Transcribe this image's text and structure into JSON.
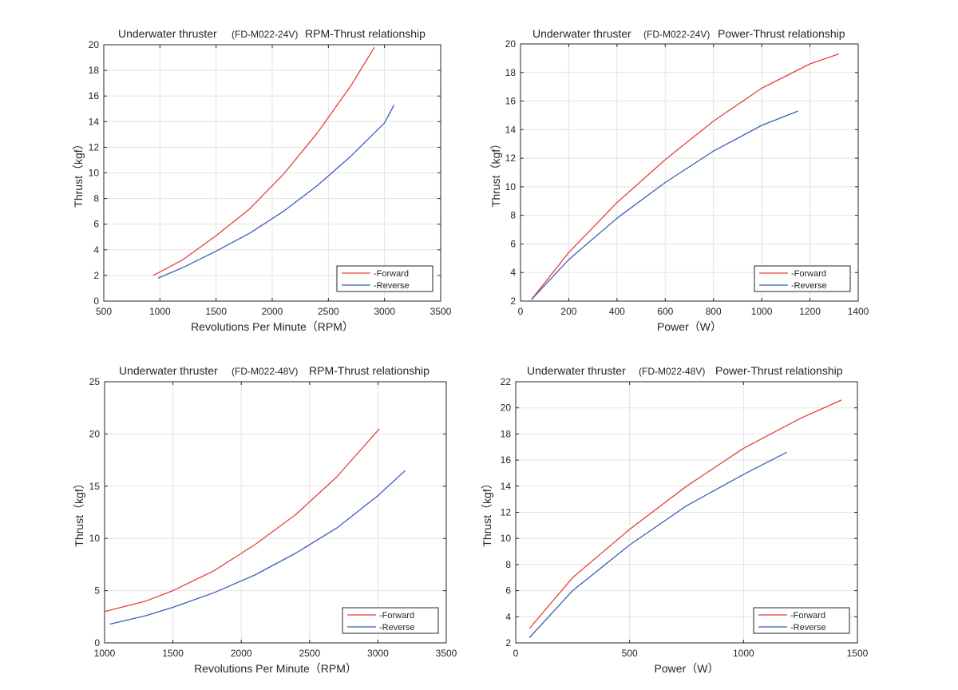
{
  "chart_data": [
    {
      "type": "line",
      "title_parts": [
        "Underwater thruster",
        "(FD-M022-24V)",
        "RPM-Thrust relationship"
      ],
      "xlabel": "Revolutions Per Minute（RPM）",
      "ylabel": "Thrust（kgf）",
      "xlim": [
        500,
        3500
      ],
      "ylim": [
        0,
        20
      ],
      "xticks": [
        500,
        1000,
        1500,
        2000,
        2500,
        3000,
        3500
      ],
      "yticks": [
        0,
        2,
        4,
        6,
        8,
        10,
        12,
        14,
        16,
        18,
        20
      ],
      "grid": true,
      "legend_position": "bottom-right",
      "series": [
        {
          "name": "-Forward",
          "color": "#e8403a",
          "x": [
            940,
            1200,
            1500,
            1800,
            2100,
            2400,
            2700,
            2910
          ],
          "y": [
            2.0,
            3.2,
            5.1,
            7.2,
            9.9,
            13.1,
            16.8,
            19.8
          ]
        },
        {
          "name": "-Reverse",
          "color": "#3a5fb8",
          "x": [
            985,
            1200,
            1500,
            1800,
            2100,
            2400,
            2700,
            3000,
            3085
          ],
          "y": [
            1.8,
            2.6,
            3.9,
            5.3,
            7.0,
            9.0,
            11.3,
            13.9,
            15.3
          ]
        }
      ]
    },
    {
      "type": "line",
      "title_parts": [
        "Underwater thruster",
        "(FD-M022-24V)",
        "Power-Thrust relationship"
      ],
      "xlabel": "Power（W）",
      "ylabel": "Thrust（kgf）",
      "xlim": [
        0,
        1400
      ],
      "ylim": [
        2,
        20
      ],
      "xticks": [
        0,
        200,
        400,
        600,
        800,
        1000,
        1200,
        1400
      ],
      "yticks": [
        2,
        4,
        6,
        8,
        10,
        12,
        14,
        16,
        18,
        20
      ],
      "grid": true,
      "legend_position": "bottom-right",
      "series": [
        {
          "name": "-Forward",
          "color": "#e8403a",
          "x": [
            45,
            200,
            400,
            600,
            800,
            1000,
            1200,
            1320
          ],
          "y": [
            2.1,
            5.4,
            8.9,
            11.9,
            14.6,
            16.9,
            18.6,
            19.3
          ]
        },
        {
          "name": "-Reverse",
          "color": "#3a5fb8",
          "x": [
            45,
            200,
            400,
            600,
            800,
            1000,
            1150
          ],
          "y": [
            2.1,
            4.9,
            7.8,
            10.3,
            12.5,
            14.3,
            15.3
          ]
        }
      ]
    },
    {
      "type": "line",
      "title_parts": [
        "Underwater thruster",
        "(FD-M022-48V)",
        "RPM-Thrust relationship"
      ],
      "xlabel": "Revolutions Per Minute（RPM）",
      "ylabel": "Thrust（kgf）",
      "xlim": [
        1000,
        3500
      ],
      "ylim": [
        0,
        25
      ],
      "xticks": [
        1000,
        1500,
        2000,
        2500,
        3000,
        3500
      ],
      "yticks": [
        0,
        5,
        10,
        15,
        20,
        25
      ],
      "grid": true,
      "legend_position": "bottom-right",
      "series": [
        {
          "name": "-Forward",
          "color": "#e8403a",
          "x": [
            1000,
            1300,
            1500,
            1800,
            2100,
            2400,
            2700,
            3010
          ],
          "y": [
            3.0,
            4.0,
            5.0,
            6.9,
            9.4,
            12.3,
            15.9,
            20.5
          ]
        },
        {
          "name": "-Reverse",
          "color": "#3a5fb8",
          "x": [
            1040,
            1300,
            1500,
            1800,
            2100,
            2400,
            2700,
            3000,
            3200
          ],
          "y": [
            1.8,
            2.6,
            3.4,
            4.8,
            6.5,
            8.6,
            11.0,
            14.1,
            16.5
          ]
        }
      ]
    },
    {
      "type": "line",
      "title_parts": [
        "Underwater thruster",
        "(FD-M022-48V)",
        "Power-Thrust relationship"
      ],
      "xlabel": "Power（W）",
      "ylabel": "Thrust（kgf）",
      "xlim": [
        0,
        1500
      ],
      "ylim": [
        2,
        22
      ],
      "xticks": [
        0,
        500,
        1000,
        1500
      ],
      "yticks": [
        2,
        4,
        6,
        8,
        10,
        12,
        14,
        16,
        18,
        20,
        22
      ],
      "grid": true,
      "legend_position": "bottom-right",
      "series": [
        {
          "name": "-Forward",
          "color": "#e8403a",
          "x": [
            60,
            250,
            500,
            750,
            1000,
            1250,
            1430
          ],
          "y": [
            3.1,
            7.0,
            10.7,
            14.0,
            16.9,
            19.2,
            20.6
          ]
        },
        {
          "name": "-Reverse",
          "color": "#3a5fb8",
          "x": [
            60,
            250,
            500,
            750,
            1000,
            1190
          ],
          "y": [
            2.4,
            6.0,
            9.5,
            12.5,
            14.9,
            16.6
          ]
        }
      ]
    }
  ]
}
